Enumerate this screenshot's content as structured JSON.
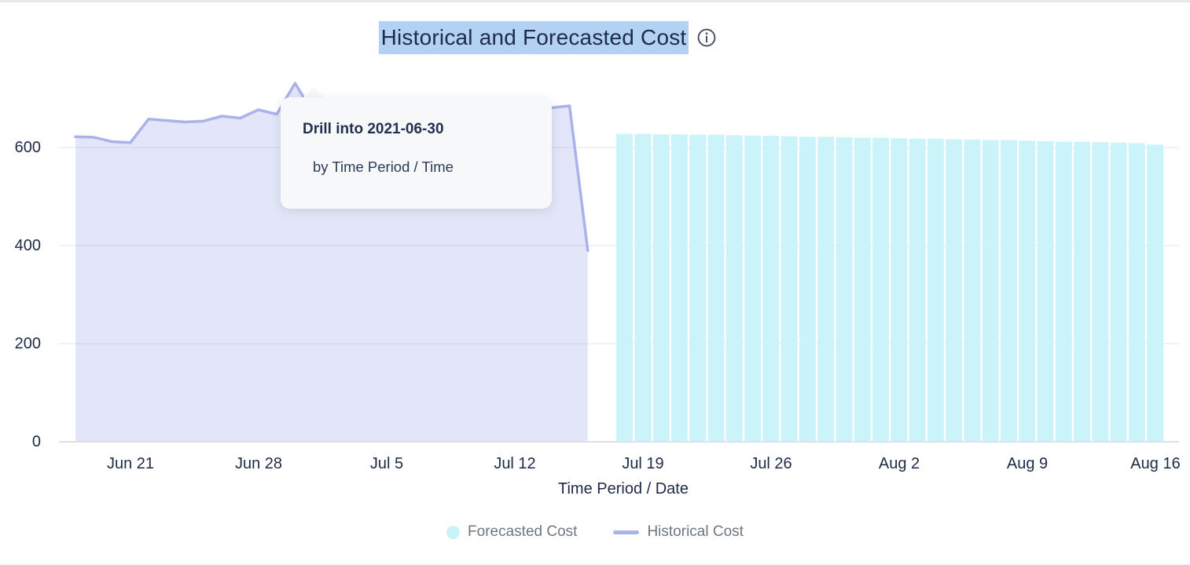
{
  "header": {
    "title": "Historical and Forecasted Cost",
    "title_highlight_color": "#b3d1f2"
  },
  "tooltip": {
    "title": "Drill into 2021-06-30",
    "subtitle": "by Time Period / Time"
  },
  "axes": {
    "y_tick_labels": [
      "600",
      "400",
      "200",
      "0"
    ],
    "x_tick_labels": [
      "Jun 21",
      "Jun 28",
      "Jul 5",
      "Jul 12",
      "Jul 19",
      "Jul 26",
      "Aug 2",
      "Aug 9",
      "Aug 16"
    ],
    "x_axis_title": "Time Period / Date"
  },
  "legend": {
    "items": [
      {
        "label": "Forecasted Cost",
        "swatch": "circle",
        "color": "#c8f3f9"
      },
      {
        "label": "Historical Cost",
        "swatch": "line",
        "color": "#a9b4e8"
      }
    ]
  },
  "chart_data": {
    "type": "mixed",
    "title": "Historical and Forecasted Cost",
    "xlabel": "Time Period / Date",
    "ylabel": "",
    "ylim": [
      0,
      740
    ],
    "y_ticks": [
      0,
      200,
      400,
      600
    ],
    "x_tick_labels": [
      "Jun 21",
      "Jun 28",
      "Jul 5",
      "Jul 12",
      "Jul 19",
      "Jul 26",
      "Aug 2",
      "Aug 9",
      "Aug 16"
    ],
    "grid": "horizontal",
    "legend_position": "bottom-center",
    "series": [
      {
        "name": "Historical Cost",
        "type": "area",
        "line_color": "#a9b3e9",
        "fill_color": "#e0e3f8",
        "x": [
          "2021-06-18",
          "2021-06-19",
          "2021-06-20",
          "2021-06-21",
          "2021-06-22",
          "2021-06-23",
          "2021-06-24",
          "2021-06-25",
          "2021-06-26",
          "2021-06-27",
          "2021-06-28",
          "2021-06-29",
          "2021-06-30",
          "2021-07-01",
          "2021-07-02",
          "2021-07-03",
          "2021-07-04",
          "2021-07-05",
          "2021-07-06",
          "2021-07-07",
          "2021-07-08",
          "2021-07-09",
          "2021-07-10",
          "2021-07-11",
          "2021-07-12",
          "2021-07-13",
          "2021-07-14",
          "2021-07-15",
          "2021-07-16"
        ],
        "values": [
          622,
          621,
          612,
          610,
          658,
          655,
          652,
          654,
          664,
          660,
          677,
          668,
          731,
          670,
          668,
          671,
          673,
          672,
          674,
          676,
          675,
          677,
          678,
          679,
          680,
          682,
          681,
          685,
          390
        ]
      },
      {
        "name": "Forecasted Cost",
        "type": "bar",
        "color": "#cbf4fa",
        "x": [
          "2021-07-18",
          "2021-07-19",
          "2021-07-20",
          "2021-07-21",
          "2021-07-22",
          "2021-07-23",
          "2021-07-24",
          "2021-07-25",
          "2021-07-26",
          "2021-07-27",
          "2021-07-28",
          "2021-07-29",
          "2021-07-30",
          "2021-07-31",
          "2021-08-01",
          "2021-08-02",
          "2021-08-03",
          "2021-08-04",
          "2021-08-05",
          "2021-08-06",
          "2021-08-07",
          "2021-08-08",
          "2021-08-09",
          "2021-08-10",
          "2021-08-11",
          "2021-08-12",
          "2021-08-13",
          "2021-08-14",
          "2021-08-15",
          "2021-08-16"
        ],
        "values": [
          628,
          628,
          627,
          627,
          626,
          626,
          625,
          624,
          624,
          623,
          622,
          622,
          621,
          620,
          620,
          619,
          618,
          618,
          617,
          616,
          615,
          615,
          614,
          613,
          612,
          612,
          611,
          610,
          609,
          606
        ]
      }
    ]
  }
}
